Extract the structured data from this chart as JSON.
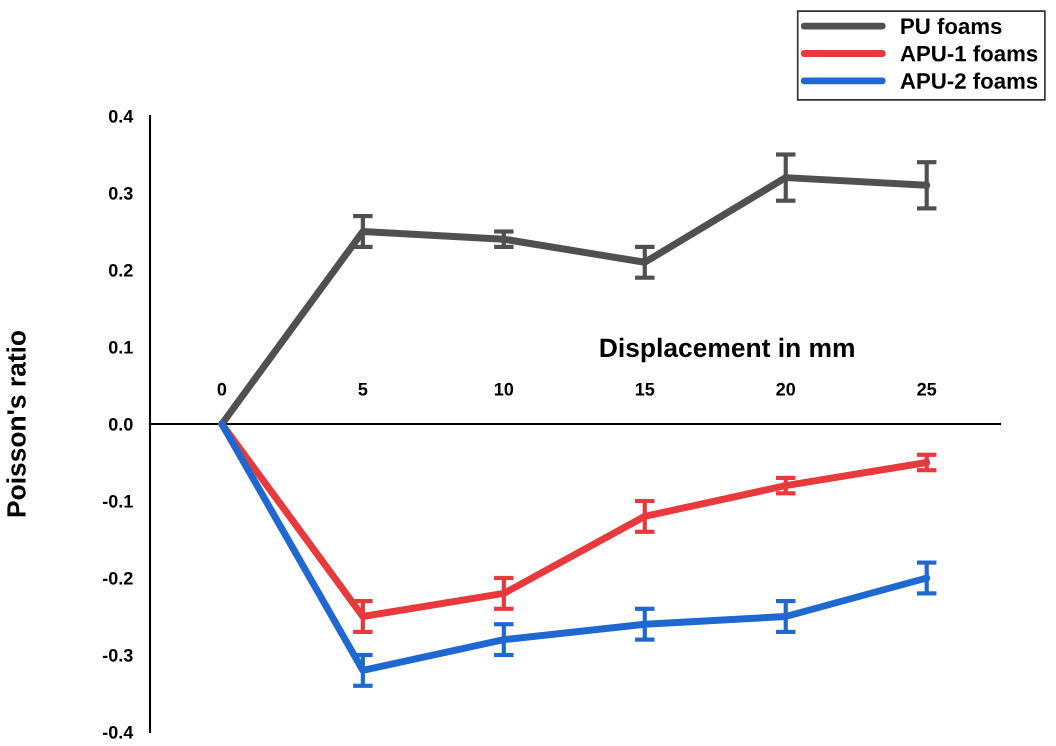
{
  "chart_data": {
    "type": "line",
    "xlabel": "Displacement in mm",
    "ylabel": "Poisson's ratio",
    "x": [
      0,
      5,
      10,
      15,
      20,
      25
    ],
    "series": [
      {
        "name": "PU foams",
        "color": "#505050",
        "values": [
          0,
          0.25,
          0.24,
          0.21,
          0.32,
          0.31
        ],
        "errors": [
          null,
          0.02,
          0.01,
          0.02,
          0.03,
          0.03
        ]
      },
      {
        "name": "APU-1 foams",
        "color": "#e8393c",
        "values": [
          0,
          -0.25,
          -0.22,
          -0.12,
          -0.08,
          -0.05
        ],
        "errors": [
          null,
          0.02,
          0.02,
          0.02,
          0.01,
          0.01
        ]
      },
      {
        "name": "APU-2 foams",
        "color": "#1f68d2",
        "values": [
          0,
          -0.32,
          -0.28,
          -0.26,
          -0.25,
          -0.2
        ],
        "errors": [
          null,
          0.02,
          0.02,
          0.02,
          0.02,
          0.02
        ]
      }
    ],
    "xlim": [
      -2.55,
      27.6
    ],
    "xticks": [
      0,
      5,
      10,
      15,
      20,
      25
    ],
    "ylim": [
      -0.4,
      0.4
    ],
    "yticks": [
      {
        "value": -0.4,
        "label": "-0.4"
      },
      {
        "value": -0.3,
        "label": "-0.3"
      },
      {
        "value": -0.2,
        "label": "-0.2"
      },
      {
        "value": -0.1,
        "label": "-0.1"
      },
      {
        "value": 0,
        "label": "0.0"
      },
      {
        "value": 0.1,
        "label": "0.1"
      },
      {
        "value": 0.2,
        "label": "0.2"
      },
      {
        "value": 0.3,
        "label": "0.3"
      },
      {
        "value": 0.4,
        "label": "0.4"
      }
    ],
    "legend": "top right",
    "grid": false,
    "marker": "none",
    "line_style": "solid"
  }
}
